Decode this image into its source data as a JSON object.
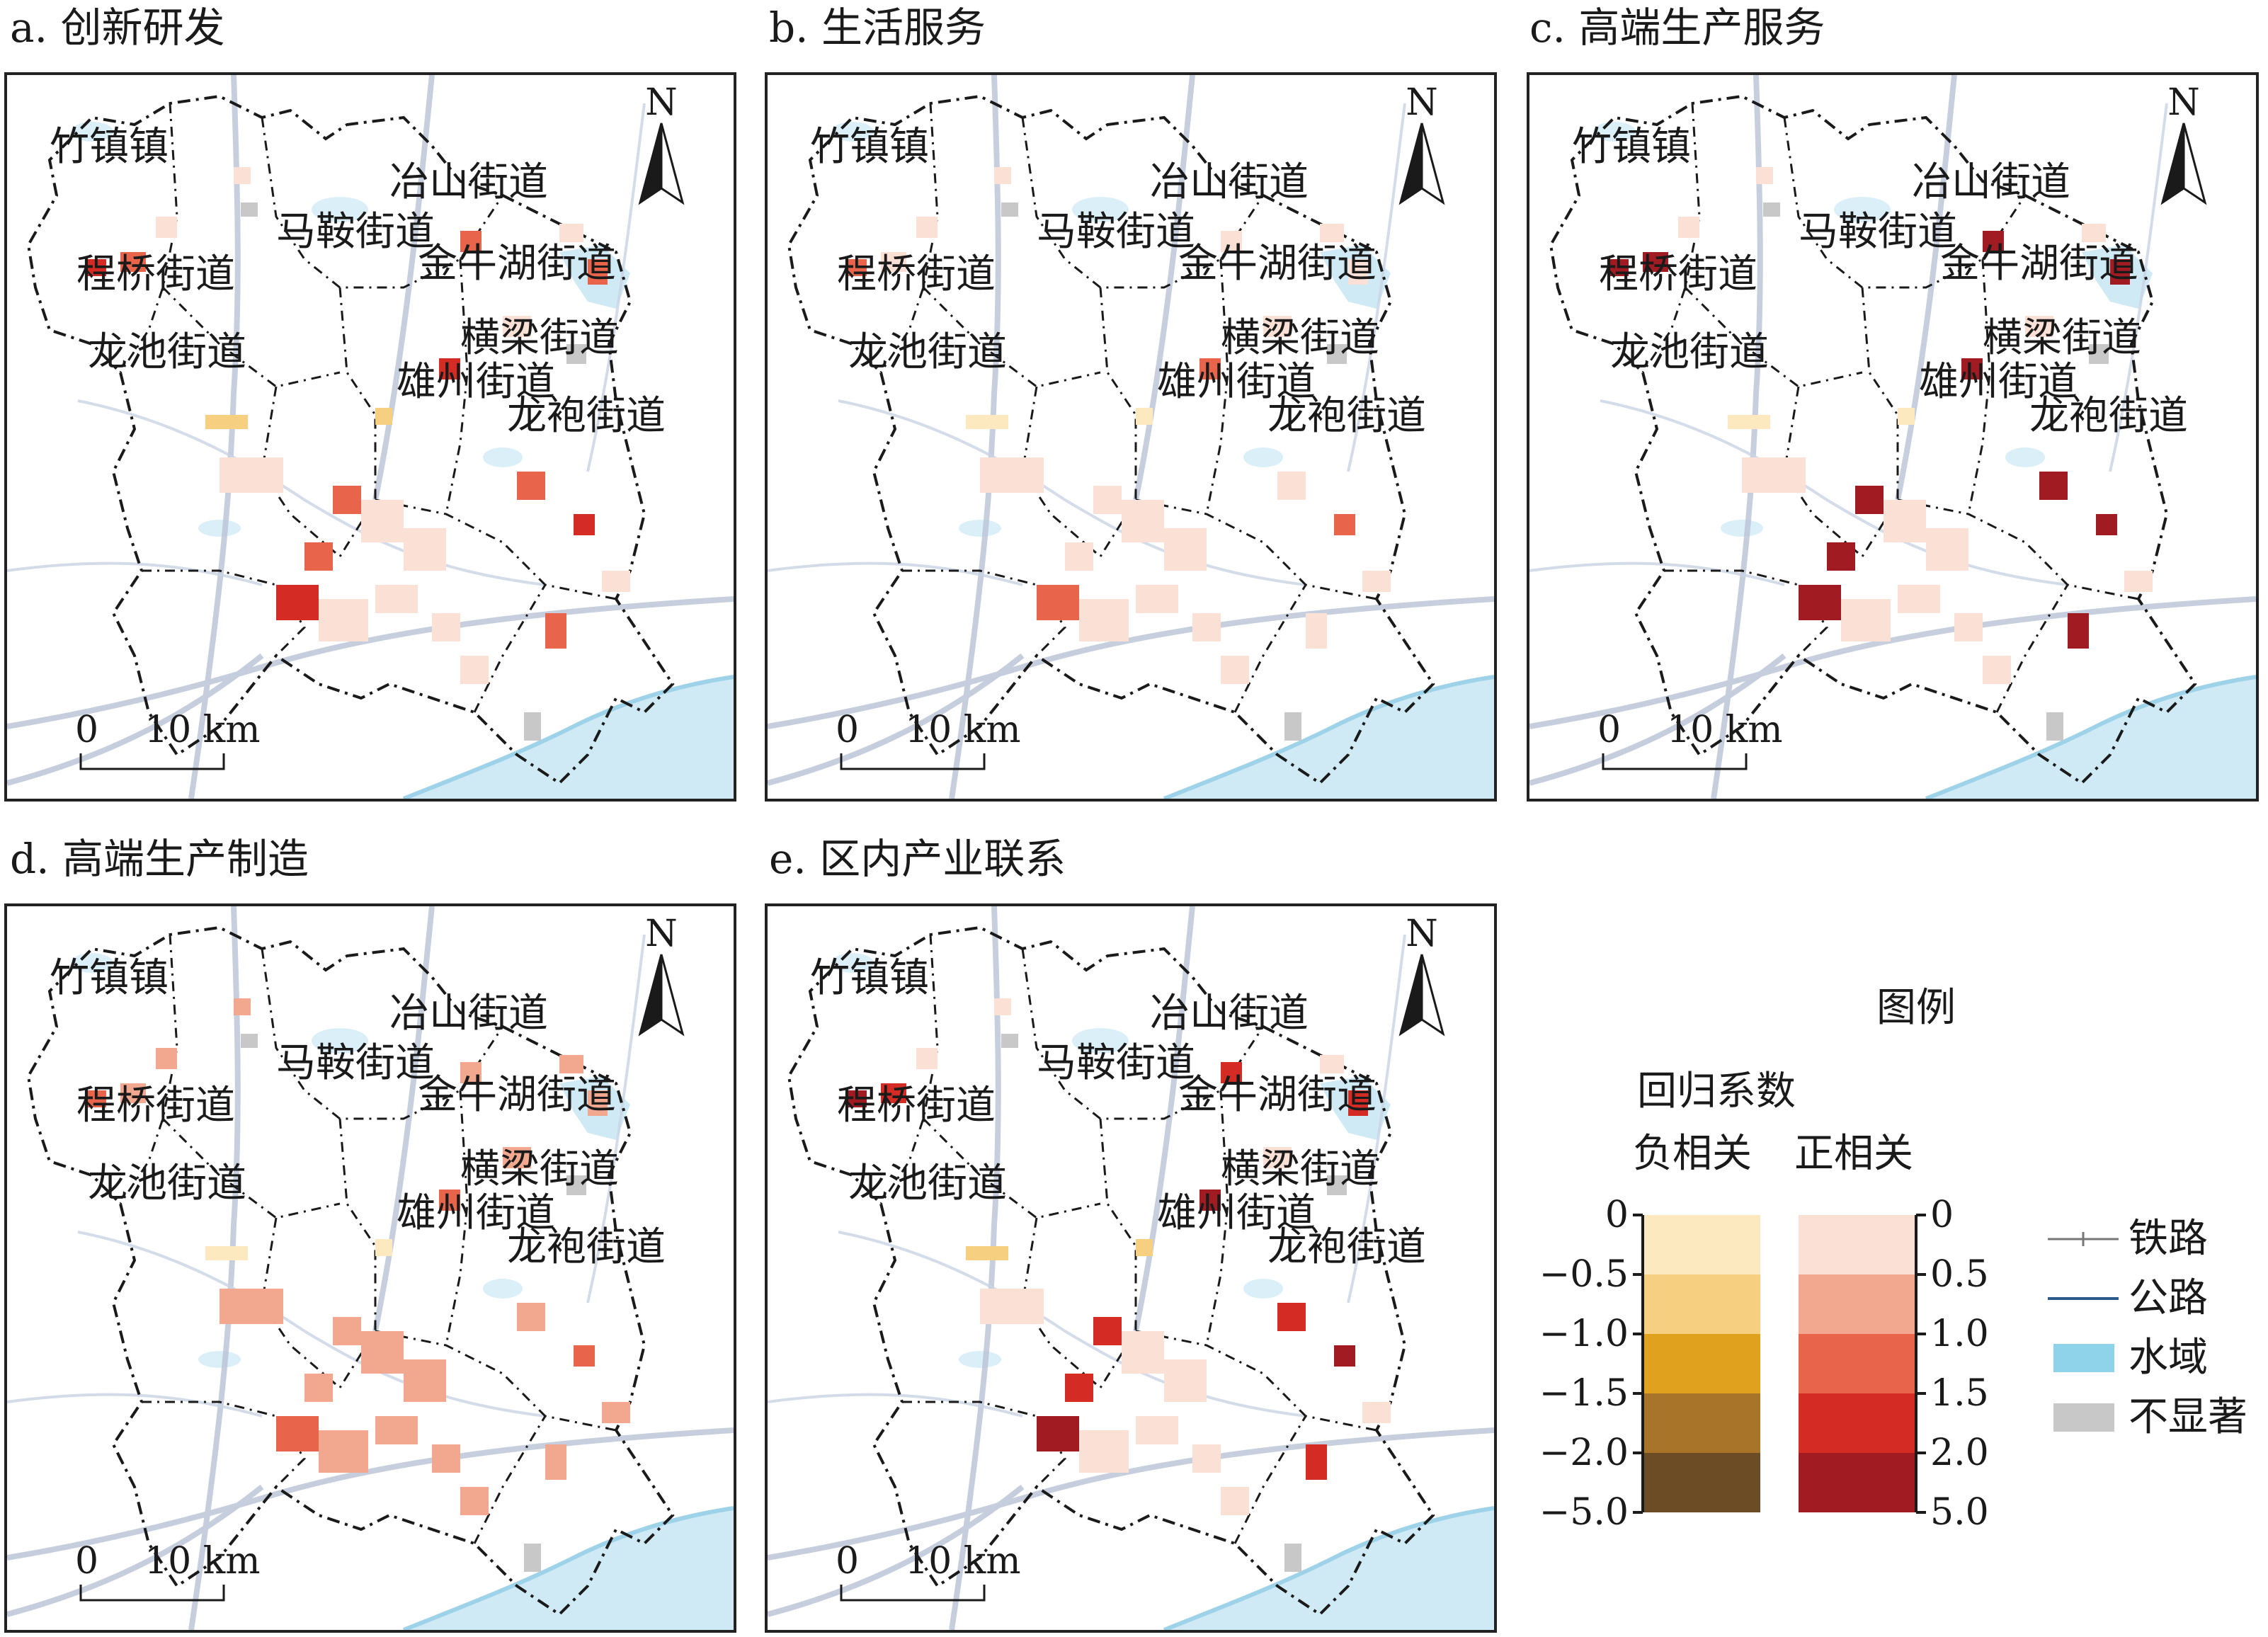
{
  "panels": [
    {
      "title": "a. 创新研发"
    },
    {
      "title": "b. 生活服务"
    },
    {
      "title": "c. 高端生产服务"
    },
    {
      "title": "d. 高端生产制造"
    },
    {
      "title": "e. 区内产业联系"
    }
  ],
  "place_labels": {
    "zhuzhen": "竹镇镇",
    "yeshan": "冶山街道",
    "maan": "马鞍街道",
    "jinniuhu": "金牛湖街道",
    "chengqiao": "程桥街道",
    "hengliang": "横梁街道",
    "longchi": "龙池街道",
    "xiongzhou": "雄州街道",
    "longpao": "龙袍街道"
  },
  "north_label": "N",
  "scale_bar": {
    "start": "0",
    "end": "10 km"
  },
  "legend": {
    "title": "图例",
    "subtitle": "回归系数",
    "negative_label": "负相关",
    "positive_label": "正相关",
    "negative_ticks": [
      "0",
      "−0.5",
      "−1.0",
      "−1.5",
      "−2.0",
      "−5.0"
    ],
    "positive_ticks": [
      "0",
      "0.5",
      "1.0",
      "1.5",
      "2.0",
      "5.0"
    ],
    "negative_colors": [
      "#fde9bf",
      "#f6cf80",
      "#e0a21e",
      "#a8742a",
      "#6b4c25"
    ],
    "positive_colors": [
      "#fbe0d6",
      "#f2a88f",
      "#e8654b",
      "#d42c25",
      "#a01b22"
    ],
    "symbols": [
      {
        "label": "铁路",
        "icon": "railway-icon"
      },
      {
        "label": "公路",
        "icon": "road-icon"
      },
      {
        "label": "水域",
        "icon": "water-swatch",
        "color": "#8fd3ea"
      },
      {
        "label": "不显著",
        "icon": "insignificant-swatch",
        "color": "#c8c8c8"
      }
    ]
  }
}
